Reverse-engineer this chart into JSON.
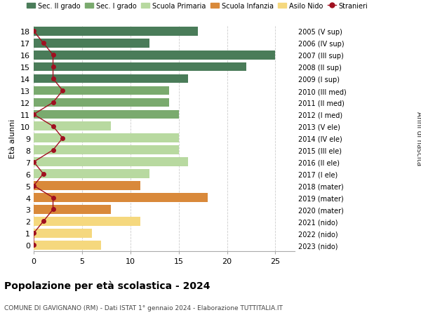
{
  "ages": [
    18,
    17,
    16,
    15,
    14,
    13,
    12,
    11,
    10,
    9,
    8,
    7,
    6,
    5,
    4,
    3,
    2,
    1,
    0
  ],
  "right_labels": [
    "2005 (V sup)",
    "2006 (IV sup)",
    "2007 (III sup)",
    "2008 (II sup)",
    "2009 (I sup)",
    "2010 (III med)",
    "2011 (II med)",
    "2012 (I med)",
    "2013 (V ele)",
    "2014 (IV ele)",
    "2015 (III ele)",
    "2016 (II ele)",
    "2017 (I ele)",
    "2018 (mater)",
    "2019 (mater)",
    "2020 (mater)",
    "2021 (nido)",
    "2022 (nido)",
    "2023 (nido)"
  ],
  "bar_values": [
    17,
    12,
    25,
    22,
    16,
    14,
    14,
    15,
    8,
    15,
    15,
    16,
    12,
    11,
    18,
    8,
    11,
    6,
    7
  ],
  "bar_colors": [
    "#4a7c59",
    "#4a7c59",
    "#4a7c59",
    "#4a7c59",
    "#4a7c59",
    "#7aaa6e",
    "#7aaa6e",
    "#7aaa6e",
    "#b8d9a0",
    "#b8d9a0",
    "#b8d9a0",
    "#b8d9a0",
    "#b8d9a0",
    "#d9893a",
    "#d9893a",
    "#d9893a",
    "#f5d87e",
    "#f5d87e",
    "#f5d87e"
  ],
  "stranieri_values": [
    0,
    1,
    2,
    2,
    2,
    3,
    2,
    0,
    2,
    3,
    2,
    0,
    1,
    0,
    2,
    2,
    1,
    0,
    0
  ],
  "legend_items": [
    {
      "label": "Sec. II grado",
      "color": "#4a7c59"
    },
    {
      "label": "Sec. I grado",
      "color": "#7aaa6e"
    },
    {
      "label": "Scuola Primaria",
      "color": "#b8d9a0"
    },
    {
      "label": "Scuola Infanzia",
      "color": "#d9893a"
    },
    {
      "label": "Asilo Nido",
      "color": "#f5d87e"
    },
    {
      "label": "Stranieri",
      "color": "#a01020"
    }
  ],
  "ylabel_left": "Età alunni",
  "ylabel_right": "Anni di nascita",
  "title": "Popolazione per età scolastica - 2024",
  "subtitle": "COMUNE DI GAVIGNANO (RM) - Dati ISTAT 1° gennaio 2024 - Elaborazione TUTTITALIA.IT",
  "xlim": [
    0,
    27
  ],
  "xticks": [
    0,
    5,
    10,
    15,
    20,
    25
  ],
  "bg_color": "#ffffff",
  "grid_color": "#cccccc",
  "stranieri_line_color": "#a01020",
  "stranieri_dot_color": "#a01020"
}
